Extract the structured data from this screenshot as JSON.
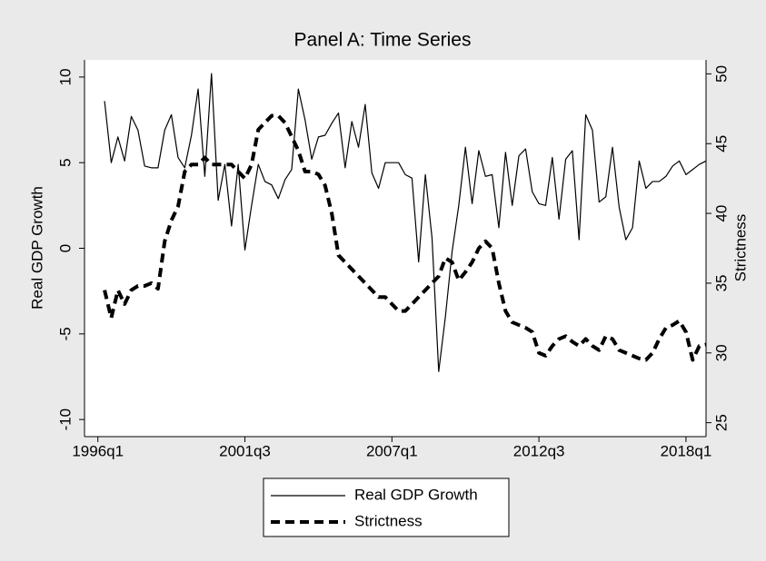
{
  "chart_data": {
    "type": "line",
    "title": "Panel A: Time Series",
    "ylabel": "Real GDP Growth",
    "y2label": "Strictness",
    "x": [
      "1996q2",
      "1996q3",
      "1996q4",
      "1997q1",
      "1997q2",
      "1997q3",
      "1997q4",
      "1998q1",
      "1998q2",
      "1998q3",
      "1998q4",
      "1999q1",
      "1999q2",
      "1999q3",
      "1999q4",
      "2000q1",
      "2000q2",
      "2000q3",
      "2000q4",
      "2001q1",
      "2001q2",
      "2001q3",
      "2001q4",
      "2002q1",
      "2002q2",
      "2002q3",
      "2002q4",
      "2003q1",
      "2003q2",
      "2003q3",
      "2003q4",
      "2004q1",
      "2004q2",
      "2004q3",
      "2004q4",
      "2005q1",
      "2005q2",
      "2005q3",
      "2005q4",
      "2006q1",
      "2006q2",
      "2006q3",
      "2006q4",
      "2007q1",
      "2007q2",
      "2007q3",
      "2007q4",
      "2008q1",
      "2008q2",
      "2008q3",
      "2008q4",
      "2009q1",
      "2009q2",
      "2009q3",
      "2009q4",
      "2010q1",
      "2010q2",
      "2010q3",
      "2010q4",
      "2011q1",
      "2011q2",
      "2011q3",
      "2011q4",
      "2012q1",
      "2012q2",
      "2012q3",
      "2012q4",
      "2013q1",
      "2013q2",
      "2013q3",
      "2013q4",
      "2014q1",
      "2014q2",
      "2014q3",
      "2014q4",
      "2015q1",
      "2015q2",
      "2015q3",
      "2015q4",
      "2016q1",
      "2016q2",
      "2016q3",
      "2016q4",
      "2017q1",
      "2017q2",
      "2017q3",
      "2017q4",
      "2018q1",
      "2018q2",
      "2018q3",
      "2018q4"
    ],
    "series": [
      {
        "name": "Real GDP Growth",
        "color": "#000000",
        "style": "solid",
        "values": [
          8.6,
          5.0,
          6.5,
          5.1,
          7.7,
          6.9,
          4.8,
          4.7,
          4.7,
          6.9,
          7.8,
          5.3,
          4.7,
          6.6,
          9.3,
          4.2,
          10.2,
          2.8,
          4.9,
          1.3,
          4.9,
          -0.1,
          2.5,
          4.9,
          3.9,
          3.7,
          2.9,
          4.0,
          4.6,
          9.3,
          7.5,
          5.2,
          6.5,
          6.6,
          7.3,
          7.9,
          4.7,
          7.4,
          5.9,
          8.4,
          4.4,
          3.5,
          5.0,
          5.0,
          5.0,
          4.3,
          4.1,
          -0.8,
          4.3,
          0.6,
          -7.2,
          -4.0,
          -0.2,
          2.5,
          5.9,
          2.6,
          5.7,
          4.2,
          4.3,
          1.2,
          5.6,
          2.5,
          5.4,
          5.8,
          3.3,
          2.6,
          2.5,
          5.3,
          1.7,
          5.2,
          5.7,
          0.5,
          7.8,
          6.9,
          2.7,
          3.0,
          5.9,
          2.4,
          0.5,
          1.2,
          5.1,
          3.5,
          3.9,
          3.9,
          4.2,
          4.8,
          5.1,
          4.3,
          4.6,
          4.9,
          5.1
        ]
      },
      {
        "name": "Strictness",
        "color": "#000000",
        "style": "dashed",
        "axis": "y2",
        "values": [
          34.5,
          32.5,
          34.5,
          33.5,
          34.5,
          34.8,
          34.8,
          35.0,
          34.6,
          38,
          39.5,
          40.5,
          43,
          43.5,
          43.5,
          44,
          43.5,
          43.5,
          43.5,
          43.5,
          43,
          42.5,
          43.5,
          46,
          46.5,
          47,
          47,
          46.5,
          45.5,
          44.5,
          43,
          43,
          42.8,
          42,
          40,
          37,
          36.5,
          36,
          35.5,
          35,
          34.5,
          34,
          34,
          33.5,
          33,
          33,
          33.5,
          34,
          34.5,
          35,
          35.5,
          36.8,
          36.5,
          35.2,
          35.8,
          36.5,
          37.5,
          38,
          37.5,
          35,
          33,
          32.2,
          32,
          31.8,
          31.5,
          30,
          29.8,
          30.5,
          31,
          31.2,
          30.8,
          30.5,
          31,
          30.5,
          30.2,
          31.2,
          31,
          30.2,
          30,
          29.8,
          29.6,
          29.5,
          30,
          31,
          31.8,
          32,
          32.3,
          31.5,
          29.5,
          30.5,
          30.6
        ]
      }
    ],
    "xlim": [
      "1995q3",
      "2018q4"
    ],
    "xticks": [
      "1996q1",
      "2001q3",
      "2007q1",
      "2012q3",
      "2018q1"
    ],
    "ylim": [
      -11,
      11
    ],
    "yticks": [
      -10,
      -5,
      0,
      5,
      10
    ],
    "y2lim": [
      24,
      51
    ],
    "y2ticks": [
      25,
      30,
      35,
      40,
      45,
      50
    ],
    "grid": false,
    "legend": "bottom"
  }
}
